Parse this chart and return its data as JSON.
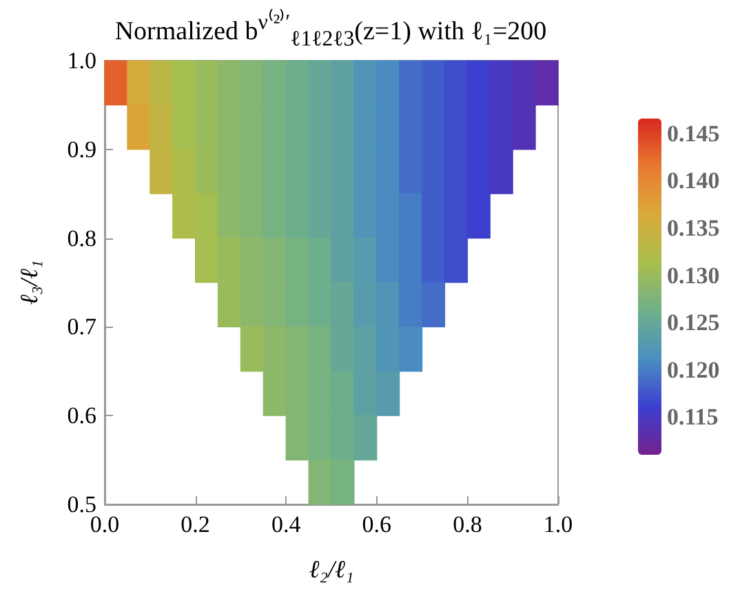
{
  "chart_data": {
    "type": "scatter",
    "title": "Normalized b$^{ν⁽²⁾′}$$_{ℓ1ℓ2ℓ3}$(z=1) with ℓ₁=200",
    "xlabel": "ℓ₂/ℓ₁",
    "ylabel": "ℓ₃/ℓ₁",
    "marker": "square",
    "x": [
      0.025,
      0.075,
      0.125,
      0.175,
      0.225,
      0.275,
      0.325,
      0.375,
      0.425,
      0.475,
      0.525,
      0.575,
      0.625,
      0.675,
      0.725,
      0.775,
      0.825,
      0.875,
      0.925,
      0.975,
      0.075,
      0.125,
      0.175,
      0.225,
      0.275,
      0.325,
      0.375,
      0.425,
      0.475,
      0.525,
      0.575,
      0.625,
      0.675,
      0.725,
      0.775,
      0.825,
      0.875,
      0.925,
      0.125,
      0.175,
      0.225,
      0.275,
      0.325,
      0.375,
      0.425,
      0.475,
      0.525,
      0.575,
      0.625,
      0.675,
      0.725,
      0.775,
      0.825,
      0.875,
      0.175,
      0.225,
      0.275,
      0.325,
      0.375,
      0.425,
      0.475,
      0.525,
      0.575,
      0.625,
      0.675,
      0.725,
      0.775,
      0.825,
      0.225,
      0.275,
      0.325,
      0.375,
      0.425,
      0.475,
      0.525,
      0.575,
      0.625,
      0.675,
      0.725,
      0.775,
      0.275,
      0.325,
      0.375,
      0.425,
      0.475,
      0.525,
      0.575,
      0.625,
      0.675,
      0.725,
      0.325,
      0.375,
      0.425,
      0.475,
      0.525,
      0.575,
      0.625,
      0.675,
      0.375,
      0.425,
      0.475,
      0.525,
      0.575,
      0.625,
      0.425,
      0.475,
      0.525,
      0.575,
      0.475,
      0.525
    ],
    "values": [
      0.975,
      0.975,
      0.975,
      0.975,
      0.975,
      0.975,
      0.975,
      0.975,
      0.975,
      0.975,
      0.975,
      0.975,
      0.975,
      0.975,
      0.975,
      0.975,
      0.975,
      0.975,
      0.975,
      0.975,
      0.925,
      0.925,
      0.925,
      0.925,
      0.925,
      0.925,
      0.925,
      0.925,
      0.925,
      0.925,
      0.925,
      0.925,
      0.925,
      0.925,
      0.925,
      0.925,
      0.925,
      0.925,
      0.875,
      0.875,
      0.875,
      0.875,
      0.875,
      0.875,
      0.875,
      0.875,
      0.875,
      0.875,
      0.875,
      0.875,
      0.875,
      0.875,
      0.875,
      0.875,
      0.825,
      0.825,
      0.825,
      0.825,
      0.825,
      0.825,
      0.825,
      0.825,
      0.825,
      0.825,
      0.825,
      0.825,
      0.825,
      0.825,
      0.775,
      0.775,
      0.775,
      0.775,
      0.775,
      0.775,
      0.775,
      0.775,
      0.775,
      0.775,
      0.775,
      0.775,
      0.725,
      0.725,
      0.725,
      0.725,
      0.725,
      0.725,
      0.725,
      0.725,
      0.725,
      0.725,
      0.675,
      0.675,
      0.675,
      0.675,
      0.675,
      0.675,
      0.675,
      0.675,
      0.625,
      0.625,
      0.625,
      0.625,
      0.625,
      0.625,
      0.575,
      0.575,
      0.575,
      0.575,
      0.525,
      0.525
    ],
    "cvalues": [
      0.143,
      0.136,
      0.133,
      0.131,
      0.13,
      0.129,
      0.128,
      0.127,
      0.126,
      0.125,
      0.124,
      0.122,
      0.121,
      0.119,
      0.118,
      0.117,
      0.116,
      0.115,
      0.114,
      0.113,
      0.137,
      0.134,
      0.131,
      0.13,
      0.129,
      0.128,
      0.127,
      0.126,
      0.125,
      0.124,
      0.122,
      0.121,
      0.119,
      0.118,
      0.117,
      0.116,
      0.115,
      0.114,
      0.134,
      0.132,
      0.13,
      0.129,
      0.128,
      0.127,
      0.126,
      0.125,
      0.124,
      0.122,
      0.121,
      0.119,
      0.118,
      0.117,
      0.116,
      0.115,
      0.132,
      0.131,
      0.129,
      0.128,
      0.127,
      0.126,
      0.125,
      0.124,
      0.122,
      0.121,
      0.12,
      0.118,
      0.117,
      0.116,
      0.131,
      0.13,
      0.129,
      0.128,
      0.127,
      0.126,
      0.124,
      0.123,
      0.121,
      0.12,
      0.118,
      0.117,
      0.13,
      0.129,
      0.128,
      0.127,
      0.126,
      0.125,
      0.123,
      0.122,
      0.12,
      0.119,
      0.13,
      0.129,
      0.128,
      0.127,
      0.125,
      0.124,
      0.122,
      0.121,
      0.129,
      0.128,
      0.127,
      0.126,
      0.124,
      0.123,
      0.128,
      0.127,
      0.126,
      0.125,
      0.128,
      0.127
    ],
    "clim": [
      0.111,
      0.1466
    ],
    "cticks": [
      0.115,
      {
        "value": 0.12,
        "label": "0.120"
      },
      0.125,
      {
        "value": 0.13,
        "label": "0.130"
      },
      0.135,
      {
        "value": 0.14,
        "label": "0.140"
      },
      0.145
    ],
    "xlim": [
      0,
      1
    ],
    "xticks": [
      {
        "value": 0,
        "label": "0.0"
      },
      0.2,
      0.4,
      0.6,
      0.8,
      {
        "value": 1,
        "label": "1.0"
      }
    ],
    "ylim": [
      0.5,
      1
    ],
    "yticks": [
      0.5,
      0.6,
      0.7,
      0.8,
      0.9,
      {
        "value": 1,
        "label": "1.0"
      }
    ],
    "grid": false
  }
}
